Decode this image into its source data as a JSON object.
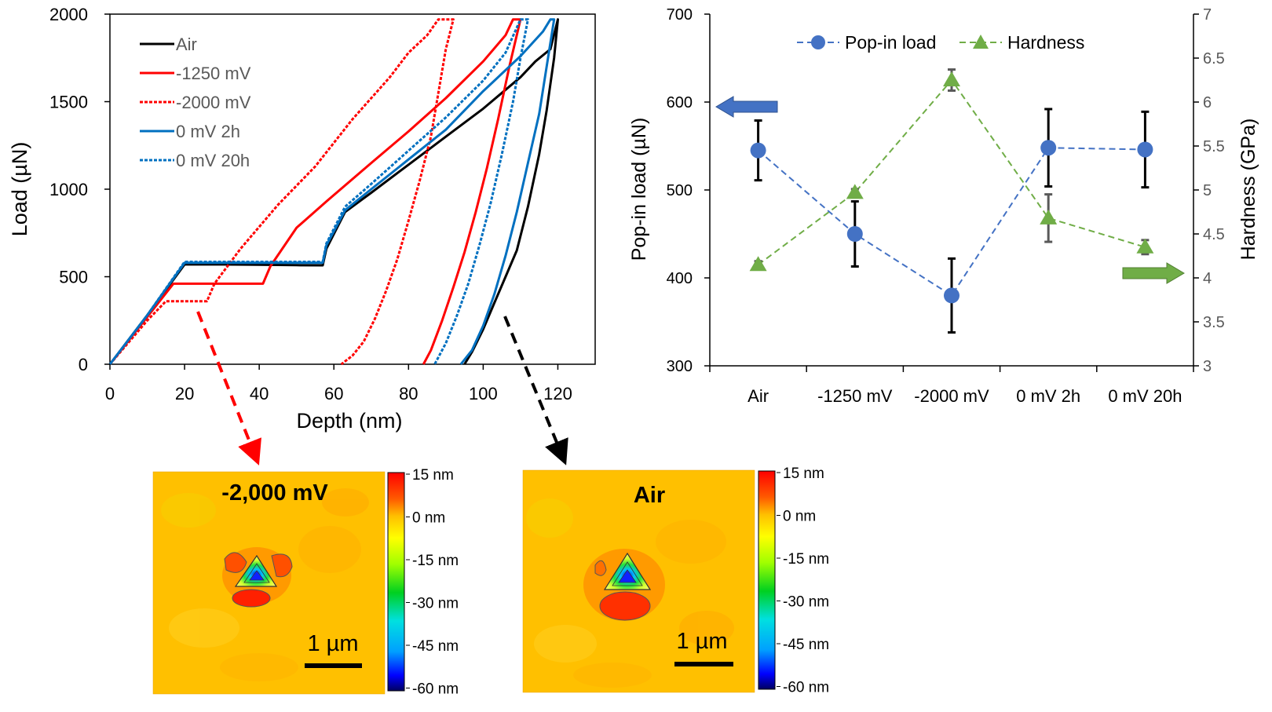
{
  "chart_data": [
    {
      "type": "line",
      "xlabel": "Depth (nm)",
      "ylabel": "Load (µN)",
      "xlim": [
        0,
        130
      ],
      "ylim": [
        0,
        2000
      ],
      "xticks": [
        "0",
        "20",
        "40",
        "60",
        "80",
        "100",
        "120"
      ],
      "yticks": [
        "0",
        "500",
        "1000",
        "1500",
        "2000"
      ],
      "legend_position": "top-left",
      "series": [
        {
          "name": "Air",
          "color": "#000000",
          "dash": "solid",
          "x": [
            0,
            10,
            20,
            22,
            30,
            40,
            50,
            57,
            58,
            63,
            70,
            80,
            90,
            100,
            110,
            114,
            118,
            120,
            119,
            117,
            115,
            112,
            109,
            106,
            103,
            100,
            97,
            95
          ],
          "y": [
            0,
            280,
            570,
            570,
            570,
            568,
            566,
            565,
            660,
            870,
            980,
            1140,
            1300,
            1460,
            1640,
            1730,
            1800,
            1970,
            1750,
            1450,
            1200,
            900,
            650,
            500,
            350,
            200,
            70,
            0
          ]
        },
        {
          "name": "-1250 mV",
          "color": "#ff0000",
          "dash": "solid",
          "x": [
            0,
            10,
            17,
            20,
            30,
            41,
            43,
            50,
            58,
            70,
            80,
            90,
            100,
            106,
            108,
            110,
            107,
            104,
            101,
            98,
            95,
            92,
            89,
            86,
            84
          ],
          "y": [
            0,
            270,
            460,
            460,
            460,
            460,
            560,
            780,
            930,
            1150,
            1330,
            1520,
            1730,
            1880,
            1970,
            1970,
            1700,
            1400,
            1120,
            870,
            640,
            440,
            250,
            80,
            0
          ]
        },
        {
          "name": "-2000 mV",
          "color": "#ff0000",
          "dash": "dash",
          "x": [
            0,
            10,
            15,
            20,
            26,
            28,
            35,
            45,
            55,
            65,
            75,
            80,
            85,
            88,
            90,
            92,
            90,
            88,
            86,
            83,
            80,
            77,
            74,
            71,
            68,
            65,
            62
          ],
          "y": [
            0,
            250,
            360,
            360,
            360,
            460,
            660,
            910,
            1130,
            1400,
            1640,
            1780,
            1880,
            1970,
            1970,
            1970,
            1800,
            1550,
            1300,
            1050,
            820,
            600,
            420,
            260,
            130,
            50,
            0
          ]
        },
        {
          "name": "0 mV 2h",
          "color": "#0070c0",
          "dash": "solid",
          "x": [
            0,
            10,
            20,
            22,
            30,
            40,
            50,
            57,
            58,
            63,
            70,
            80,
            90,
            100,
            110,
            116,
            118,
            119,
            117,
            115,
            112,
            109,
            106,
            103,
            100,
            97,
            94
          ],
          "y": [
            0,
            280,
            580,
            580,
            580,
            580,
            580,
            580,
            680,
            880,
            1000,
            1170,
            1340,
            1560,
            1760,
            1900,
            1970,
            1970,
            1700,
            1430,
            1150,
            870,
            620,
            400,
            220,
            80,
            0
          ]
        },
        {
          "name": "0 mV 20h",
          "color": "#0070c0",
          "dash": "dash",
          "x": [
            0,
            10,
            20,
            22,
            30,
            40,
            50,
            57,
            58,
            63,
            70,
            80,
            90,
            100,
            106,
            110,
            112,
            110,
            108,
            105,
            102,
            99,
            96,
            93,
            90,
            87
          ],
          "y": [
            0,
            280,
            585,
            585,
            585,
            585,
            585,
            585,
            690,
            900,
            1030,
            1220,
            1410,
            1620,
            1780,
            1970,
            1970,
            1750,
            1500,
            1200,
            920,
            680,
            460,
            280,
            120,
            0
          ]
        }
      ]
    },
    {
      "type": "scatter",
      "xlabel": "",
      "ylabel": "Pop-in load (µN)",
      "y2label": "Hardness (GPa)",
      "categories": [
        "Air",
        "-1250 mV",
        "-2000 mV",
        "0 mV 2h",
        "0 mV 20h"
      ],
      "ylim": [
        300,
        700
      ],
      "y2lim": [
        3,
        7
      ],
      "yticks": [
        "300",
        "400",
        "500",
        "600",
        "700"
      ],
      "y2ticks": [
        "3",
        "3.5",
        "4",
        "4.5",
        "5",
        "5.5",
        "6",
        "6.5",
        "7"
      ],
      "legend_position": "top-center",
      "series": [
        {
          "name": "Pop-in load",
          "axis": "left",
          "color": "#4472c4",
          "marker": "circle",
          "values": [
            545,
            450,
            380,
            548,
            546
          ],
          "err": [
            34,
            37,
            42,
            44,
            43
          ]
        },
        {
          "name": "Hardness",
          "axis": "right",
          "color": "#70ad47",
          "marker": "triangle",
          "values": [
            4.15,
            4.97,
            6.25,
            4.68,
            4.35
          ],
          "err": [
            0.04,
            0.04,
            0.12,
            0.27,
            0.08
          ]
        }
      ]
    }
  ],
  "afm_maps": [
    {
      "title": "-2,000 mV",
      "scale_label": "1 µm"
    },
    {
      "title": "Air",
      "scale_label": "1 µm"
    }
  ],
  "colorbar_labels": [
    "15 nm",
    "0 nm",
    "-15 nm",
    "-30 nm",
    "-45 nm",
    "-60 nm"
  ]
}
